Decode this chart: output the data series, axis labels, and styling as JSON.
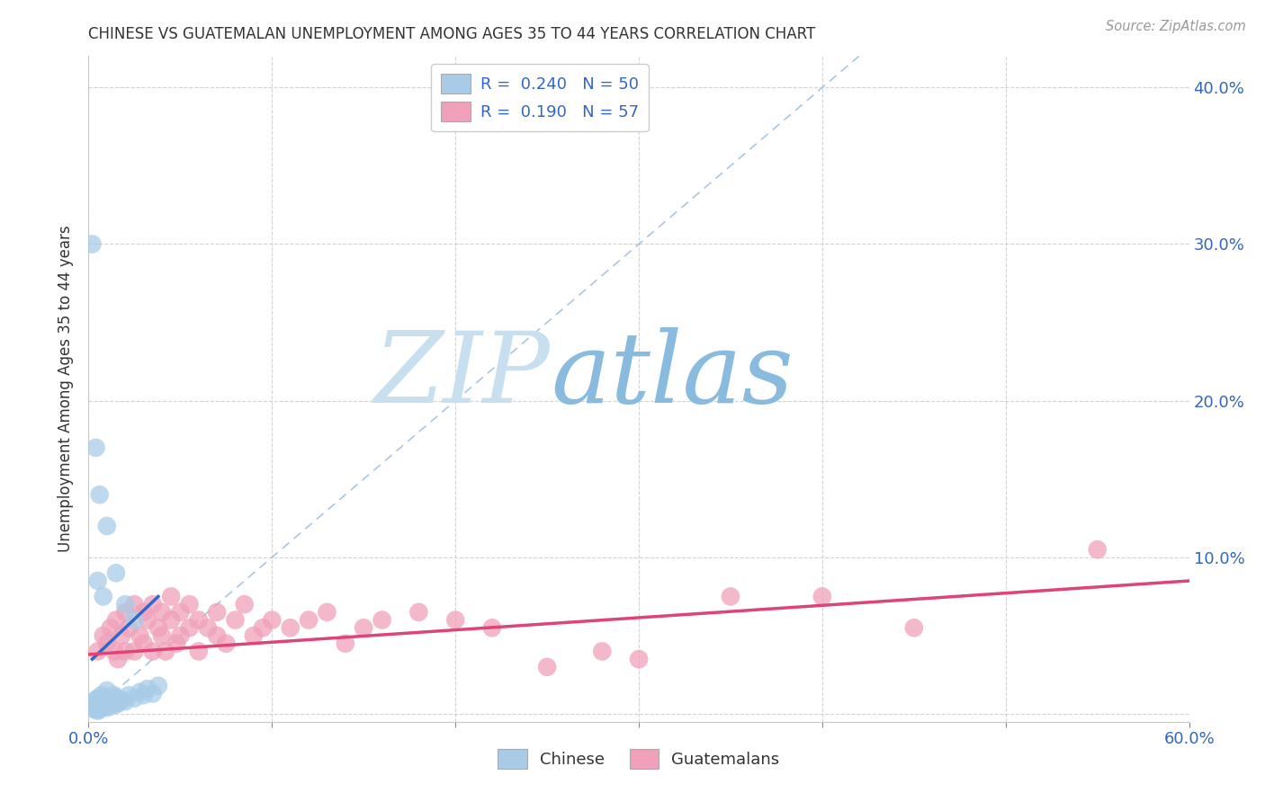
{
  "title": "CHINESE VS GUATEMALAN UNEMPLOYMENT AMONG AGES 35 TO 44 YEARS CORRELATION CHART",
  "source": "Source: ZipAtlas.com",
  "ylabel": "Unemployment Among Ages 35 to 44 years",
  "xlim": [
    0.0,
    0.6
  ],
  "ylim": [
    -0.005,
    0.42
  ],
  "chinese_R": 0.24,
  "chinese_N": 50,
  "guatemalan_R": 0.19,
  "guatemalan_N": 57,
  "chinese_color": "#a8cce8",
  "guatemalan_color": "#f0a0b8",
  "chinese_trend_color": "#3366cc",
  "guatemalan_trend_color": "#dd4477",
  "diagonal_color": "#a0c0e0",
  "background_color": "#ffffff",
  "watermark_zip": "ZIP",
  "watermark_atlas": "atlas",
  "watermark_zip_color": "#c8dff0",
  "watermark_atlas_color": "#88bbdd",
  "legend_chinese_label": "Chinese",
  "legend_guatemalan_label": "Guatemalans",
  "chinese_x": [
    0.002,
    0.003,
    0.003,
    0.004,
    0.004,
    0.004,
    0.005,
    0.005,
    0.005,
    0.005,
    0.006,
    0.006,
    0.006,
    0.007,
    0.007,
    0.007,
    0.008,
    0.008,
    0.009,
    0.009,
    0.01,
    0.01,
    0.01,
    0.01,
    0.012,
    0.012,
    0.013,
    0.014,
    0.015,
    0.015,
    0.016,
    0.018,
    0.02,
    0.022,
    0.025,
    0.028,
    0.03,
    0.032,
    0.035,
    0.038,
    0.002,
    0.003,
    0.004,
    0.005,
    0.006,
    0.008,
    0.01,
    0.015,
    0.02,
    0.025
  ],
  "chinese_y": [
    0.005,
    0.004,
    0.008,
    0.003,
    0.006,
    0.009,
    0.002,
    0.004,
    0.007,
    0.01,
    0.003,
    0.006,
    0.009,
    0.004,
    0.007,
    0.012,
    0.005,
    0.008,
    0.006,
    0.011,
    0.004,
    0.007,
    0.01,
    0.015,
    0.005,
    0.009,
    0.008,
    0.012,
    0.006,
    0.01,
    0.007,
    0.009,
    0.008,
    0.012,
    0.01,
    0.014,
    0.012,
    0.016,
    0.013,
    0.018,
    0.3,
    0.003,
    0.17,
    0.085,
    0.14,
    0.075,
    0.12,
    0.09,
    0.07,
    0.06
  ],
  "guatemalan_x": [
    0.005,
    0.008,
    0.01,
    0.012,
    0.014,
    0.015,
    0.016,
    0.018,
    0.02,
    0.02,
    0.022,
    0.025,
    0.025,
    0.028,
    0.03,
    0.03,
    0.032,
    0.035,
    0.035,
    0.038,
    0.04,
    0.04,
    0.042,
    0.045,
    0.045,
    0.048,
    0.05,
    0.05,
    0.055,
    0.055,
    0.06,
    0.06,
    0.065,
    0.07,
    0.07,
    0.075,
    0.08,
    0.085,
    0.09,
    0.095,
    0.1,
    0.11,
    0.12,
    0.13,
    0.14,
    0.15,
    0.16,
    0.18,
    0.2,
    0.22,
    0.25,
    0.28,
    0.3,
    0.35,
    0.4,
    0.45,
    0.55
  ],
  "guatemalan_y": [
    0.04,
    0.05,
    0.045,
    0.055,
    0.04,
    0.06,
    0.035,
    0.05,
    0.04,
    0.065,
    0.055,
    0.04,
    0.07,
    0.05,
    0.045,
    0.065,
    0.06,
    0.04,
    0.07,
    0.055,
    0.05,
    0.065,
    0.04,
    0.06,
    0.075,
    0.045,
    0.05,
    0.065,
    0.055,
    0.07,
    0.04,
    0.06,
    0.055,
    0.05,
    0.065,
    0.045,
    0.06,
    0.07,
    0.05,
    0.055,
    0.06,
    0.055,
    0.06,
    0.065,
    0.045,
    0.055,
    0.06,
    0.065,
    0.06,
    0.055,
    0.03,
    0.04,
    0.035,
    0.075,
    0.075,
    0.055,
    0.105
  ],
  "chinese_trend_x": [
    0.002,
    0.038
  ],
  "chinese_trend_y_start": 0.035,
  "chinese_trend_y_end": 0.075,
  "guatemalan_trend_x": [
    0.0,
    0.6
  ],
  "guatemalan_trend_y_start": 0.038,
  "guatemalan_trend_y_end": 0.085
}
